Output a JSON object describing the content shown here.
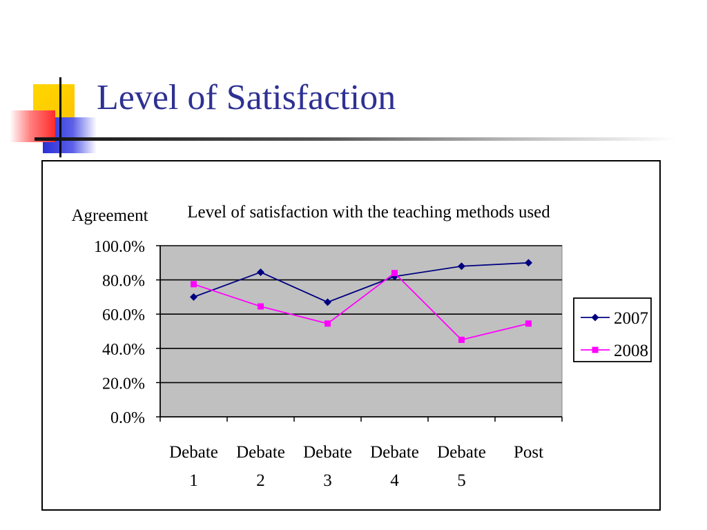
{
  "slide": {
    "title": "Level of Satisfaction"
  },
  "colors": {
    "title": "#2e3192",
    "plot_background": "#c0c0c0",
    "series_2007": "#000080",
    "series_2008": "#ff00ff",
    "deco_yellow": "#ffcc00",
    "deco_blue": "#2b2fd6",
    "deco_red": "#ff3b3b"
  },
  "chart_data": {
    "type": "line",
    "title": "Level of satisfaction with the teaching methods used",
    "ylabel": "Agreement",
    "xlabel": "",
    "categories": [
      [
        "Debate",
        "1"
      ],
      [
        "Debate",
        "2"
      ],
      [
        "Debate",
        "3"
      ],
      [
        "Debate",
        "4"
      ],
      [
        "Debate",
        "5"
      ],
      [
        "Post"
      ]
    ],
    "ylim": [
      0,
      100
    ],
    "yticks": [
      "0.0%",
      "20.0%",
      "40.0%",
      "60.0%",
      "80.0%",
      "100.0%"
    ],
    "grid": true,
    "legend_position": "right",
    "series": [
      {
        "name": "2007",
        "marker": "diamond",
        "color": "#000080",
        "values": [
          70,
          84.5,
          67,
          82,
          88,
          90
        ]
      },
      {
        "name": "2008",
        "marker": "square",
        "color": "#ff00ff",
        "values": [
          77.5,
          64.5,
          54.5,
          84,
          45,
          54.5
        ]
      }
    ]
  }
}
